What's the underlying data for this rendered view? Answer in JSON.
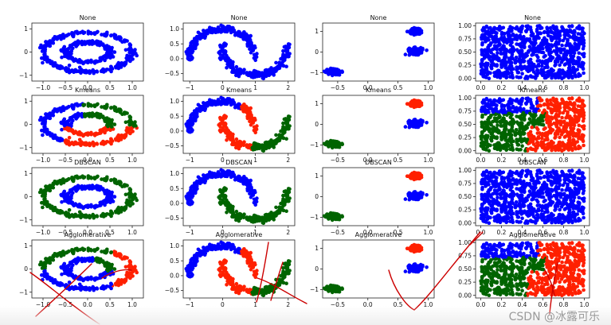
{
  "watermark": "CSDN @冰露可乐",
  "colors": {
    "blue": "#0000ff",
    "green": "#006400",
    "red": "#ff2000",
    "ink": "#cc0000"
  },
  "chart_data": {
    "type": "scatter",
    "rows": [
      "None",
      "Kmeans",
      "DBSCAN",
      "Agglomerative"
    ],
    "datasets": [
      {
        "name": "circles",
        "xlim": [
          -1.25,
          1.25
        ],
        "ylim": [
          -1.25,
          1.25
        ],
        "xticks": [
          -1.0,
          -0.5,
          0.0,
          0.5,
          1.0
        ],
        "xticklabels": [
          "−1.0",
          "−0.5",
          "0.0",
          "0.5",
          "1.0"
        ],
        "yticks": [
          -1,
          0,
          1
        ],
        "yticklabels": [
          "−1",
          "0",
          "1"
        ]
      },
      {
        "name": "moons",
        "xlim": [
          -1.2,
          2.2
        ],
        "ylim": [
          -0.75,
          1.2
        ],
        "xticks": [
          -1,
          0,
          1,
          2
        ],
        "xticklabels": [
          "−1",
          "0",
          "1",
          "2"
        ],
        "yticks": [
          -0.5,
          0.0,
          0.5,
          1.0
        ],
        "yticklabels": [
          "−0.5",
          "0.0",
          "0.5",
          "1.0"
        ]
      },
      {
        "name": "blobs",
        "xlim": [
          -0.75,
          1.1
        ],
        "ylim": [
          -1.4,
          1.4
        ],
        "xticks": [
          -0.5,
          0.0,
          0.5,
          1.0
        ],
        "xticklabels": [
          "−0.5",
          "0.0",
          "0.5",
          "1.0"
        ],
        "yticks": [
          -1,
          0,
          1
        ],
        "yticklabels": [
          "−1",
          "0",
          "1"
        ]
      },
      {
        "name": "uniform",
        "xlim": [
          -0.05,
          1.05
        ],
        "ylim": [
          -0.05,
          1.05
        ],
        "xticks": [
          0.0,
          0.2,
          0.4,
          0.6,
          0.8,
          1.0
        ],
        "xticklabels": [
          "0.0",
          "0.2",
          "0.4",
          "0.6",
          "0.8",
          "1.0"
        ],
        "yticks": [
          0.0,
          0.25,
          0.5,
          0.75,
          1.0
        ],
        "yticklabels": [
          "0.00",
          "0.25",
          "0.50",
          "0.75",
          "1.00"
        ]
      }
    ],
    "panel_titles": [
      [
        "None",
        "None",
        "None",
        "None"
      ],
      [
        "Kmeans",
        "Kmeans",
        "Kmeans",
        "Kmeans"
      ],
      [
        "DBSCAN",
        "DBSCAN",
        "DBSCAN",
        "DBSCAN"
      ],
      [
        "Agglomerative",
        "Agglomerative",
        "Agglomerative",
        "Agglomerative"
      ]
    ],
    "clusterings": {
      "circles": {
        "None": "all-blue",
        "Kmeans": "three-sectors",
        "DBSCAN": "rings",
        "Agglomerative": "outer-split"
      },
      "moons": {
        "None": "all-blue",
        "Kmeans": "three-parts",
        "DBSCAN": "moons",
        "Agglomerative": "three-parts"
      },
      "blobs": {
        "None": "all-blue",
        "Kmeans": "blobs",
        "DBSCAN": "blobs",
        "Agglomerative": "blobs"
      },
      "uniform": {
        "None": "all-blue",
        "Kmeans": "three-regions",
        "DBSCAN": "all-blue",
        "Agglomerative": "three-regions"
      }
    }
  }
}
